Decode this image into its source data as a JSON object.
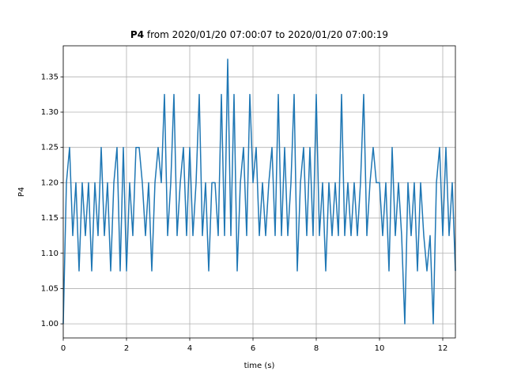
{
  "chart_data": {
    "type": "line",
    "title_series": "P4",
    "title": "from 2020/01/20 07:00:07 to 2020/01/20 07:00:19",
    "xlabel": "time (s)",
    "ylabel": "P4",
    "xlim": [
      0,
      12.4
    ],
    "ylim": [
      0.98,
      1.394
    ],
    "xticks": [
      0,
      2,
      4,
      6,
      8,
      10,
      12
    ],
    "yticks": [
      {
        "value": 1.0,
        "label": "1.00"
      },
      1.05,
      {
        "value": 1.1,
        "label": "1.10"
      },
      1.15,
      {
        "value": 1.2,
        "label": "1.20"
      },
      1.25,
      {
        "value": 1.3,
        "label": "1.30"
      },
      1.35
    ],
    "grid": true,
    "x": [
      0,
      0.1,
      0.2,
      0.3,
      0.4,
      0.5,
      0.6,
      0.7,
      0.8,
      0.9,
      1.0,
      1.1,
      1.2,
      1.3,
      1.4,
      1.5,
      1.6,
      1.7,
      1.8,
      1.9,
      2.0,
      2.1,
      2.2,
      2.3,
      2.4,
      2.5,
      2.6,
      2.7,
      2.8,
      2.9,
      3.0,
      3.1,
      3.2,
      3.3,
      3.4,
      3.5,
      3.6,
      3.7,
      3.8,
      3.9,
      4.0,
      4.1,
      4.2,
      4.3,
      4.4,
      4.5,
      4.6,
      4.7,
      4.8,
      4.9,
      5.0,
      5.1,
      5.2,
      5.3,
      5.4,
      5.5,
      5.6,
      5.7,
      5.8,
      5.9,
      6.0,
      6.1,
      6.2,
      6.3,
      6.4,
      6.5,
      6.6,
      6.7,
      6.8,
      6.9,
      7.0,
      7.1,
      7.2,
      7.3,
      7.4,
      7.5,
      7.6,
      7.7,
      7.8,
      7.9,
      8.0,
      8.1,
      8.2,
      8.3,
      8.4,
      8.5,
      8.6,
      8.7,
      8.8,
      8.9,
      9.0,
      9.1,
      9.2,
      9.3,
      9.4,
      9.5,
      9.6,
      9.7,
      9.8,
      9.9,
      10.0,
      10.1,
      10.2,
      10.3,
      10.4,
      10.5,
      10.6,
      10.7,
      10.8,
      10.9,
      11.0,
      11.1,
      11.2,
      11.3,
      11.4,
      11.5,
      11.6,
      11.7,
      11.8,
      11.9,
      12.0,
      12.1,
      12.2,
      12.3,
      12.4
    ],
    "series": [
      {
        "name": "P4",
        "color": "#1f77b4",
        "values": [
          1.0,
          1.2,
          1.25,
          1.125,
          1.2,
          1.075,
          1.2,
          1.125,
          1.2,
          1.075,
          1.2,
          1.125,
          1.25,
          1.125,
          1.2,
          1.075,
          1.2,
          1.25,
          1.075,
          1.25,
          1.075,
          1.2,
          1.125,
          1.25,
          1.25,
          1.2,
          1.125,
          1.2,
          1.075,
          1.2,
          1.25,
          1.2,
          1.325,
          1.125,
          1.2,
          1.325,
          1.125,
          1.2,
          1.25,
          1.125,
          1.25,
          1.125,
          1.2,
          1.325,
          1.125,
          1.2,
          1.075,
          1.2,
          1.2,
          1.125,
          1.325,
          1.125,
          1.375,
          1.125,
          1.325,
          1.075,
          1.2,
          1.25,
          1.125,
          1.325,
          1.2,
          1.25,
          1.125,
          1.2,
          1.125,
          1.2,
          1.25,
          1.125,
          1.325,
          1.125,
          1.25,
          1.125,
          1.2,
          1.325,
          1.075,
          1.2,
          1.25,
          1.125,
          1.25,
          1.125,
          1.325,
          1.125,
          1.2,
          1.075,
          1.2,
          1.125,
          1.2,
          1.125,
          1.325,
          1.125,
          1.2,
          1.125,
          1.2,
          1.125,
          1.2,
          1.325,
          1.125,
          1.2,
          1.25,
          1.2,
          1.2,
          1.125,
          1.2,
          1.075,
          1.25,
          1.125,
          1.2,
          1.125,
          1.0,
          1.2,
          1.125,
          1.2,
          1.075,
          1.2,
          1.125,
          1.075,
          1.125,
          1.0,
          1.2,
          1.25,
          1.125,
          1.25,
          1.125,
          1.2,
          1.075
        ]
      }
    ]
  }
}
